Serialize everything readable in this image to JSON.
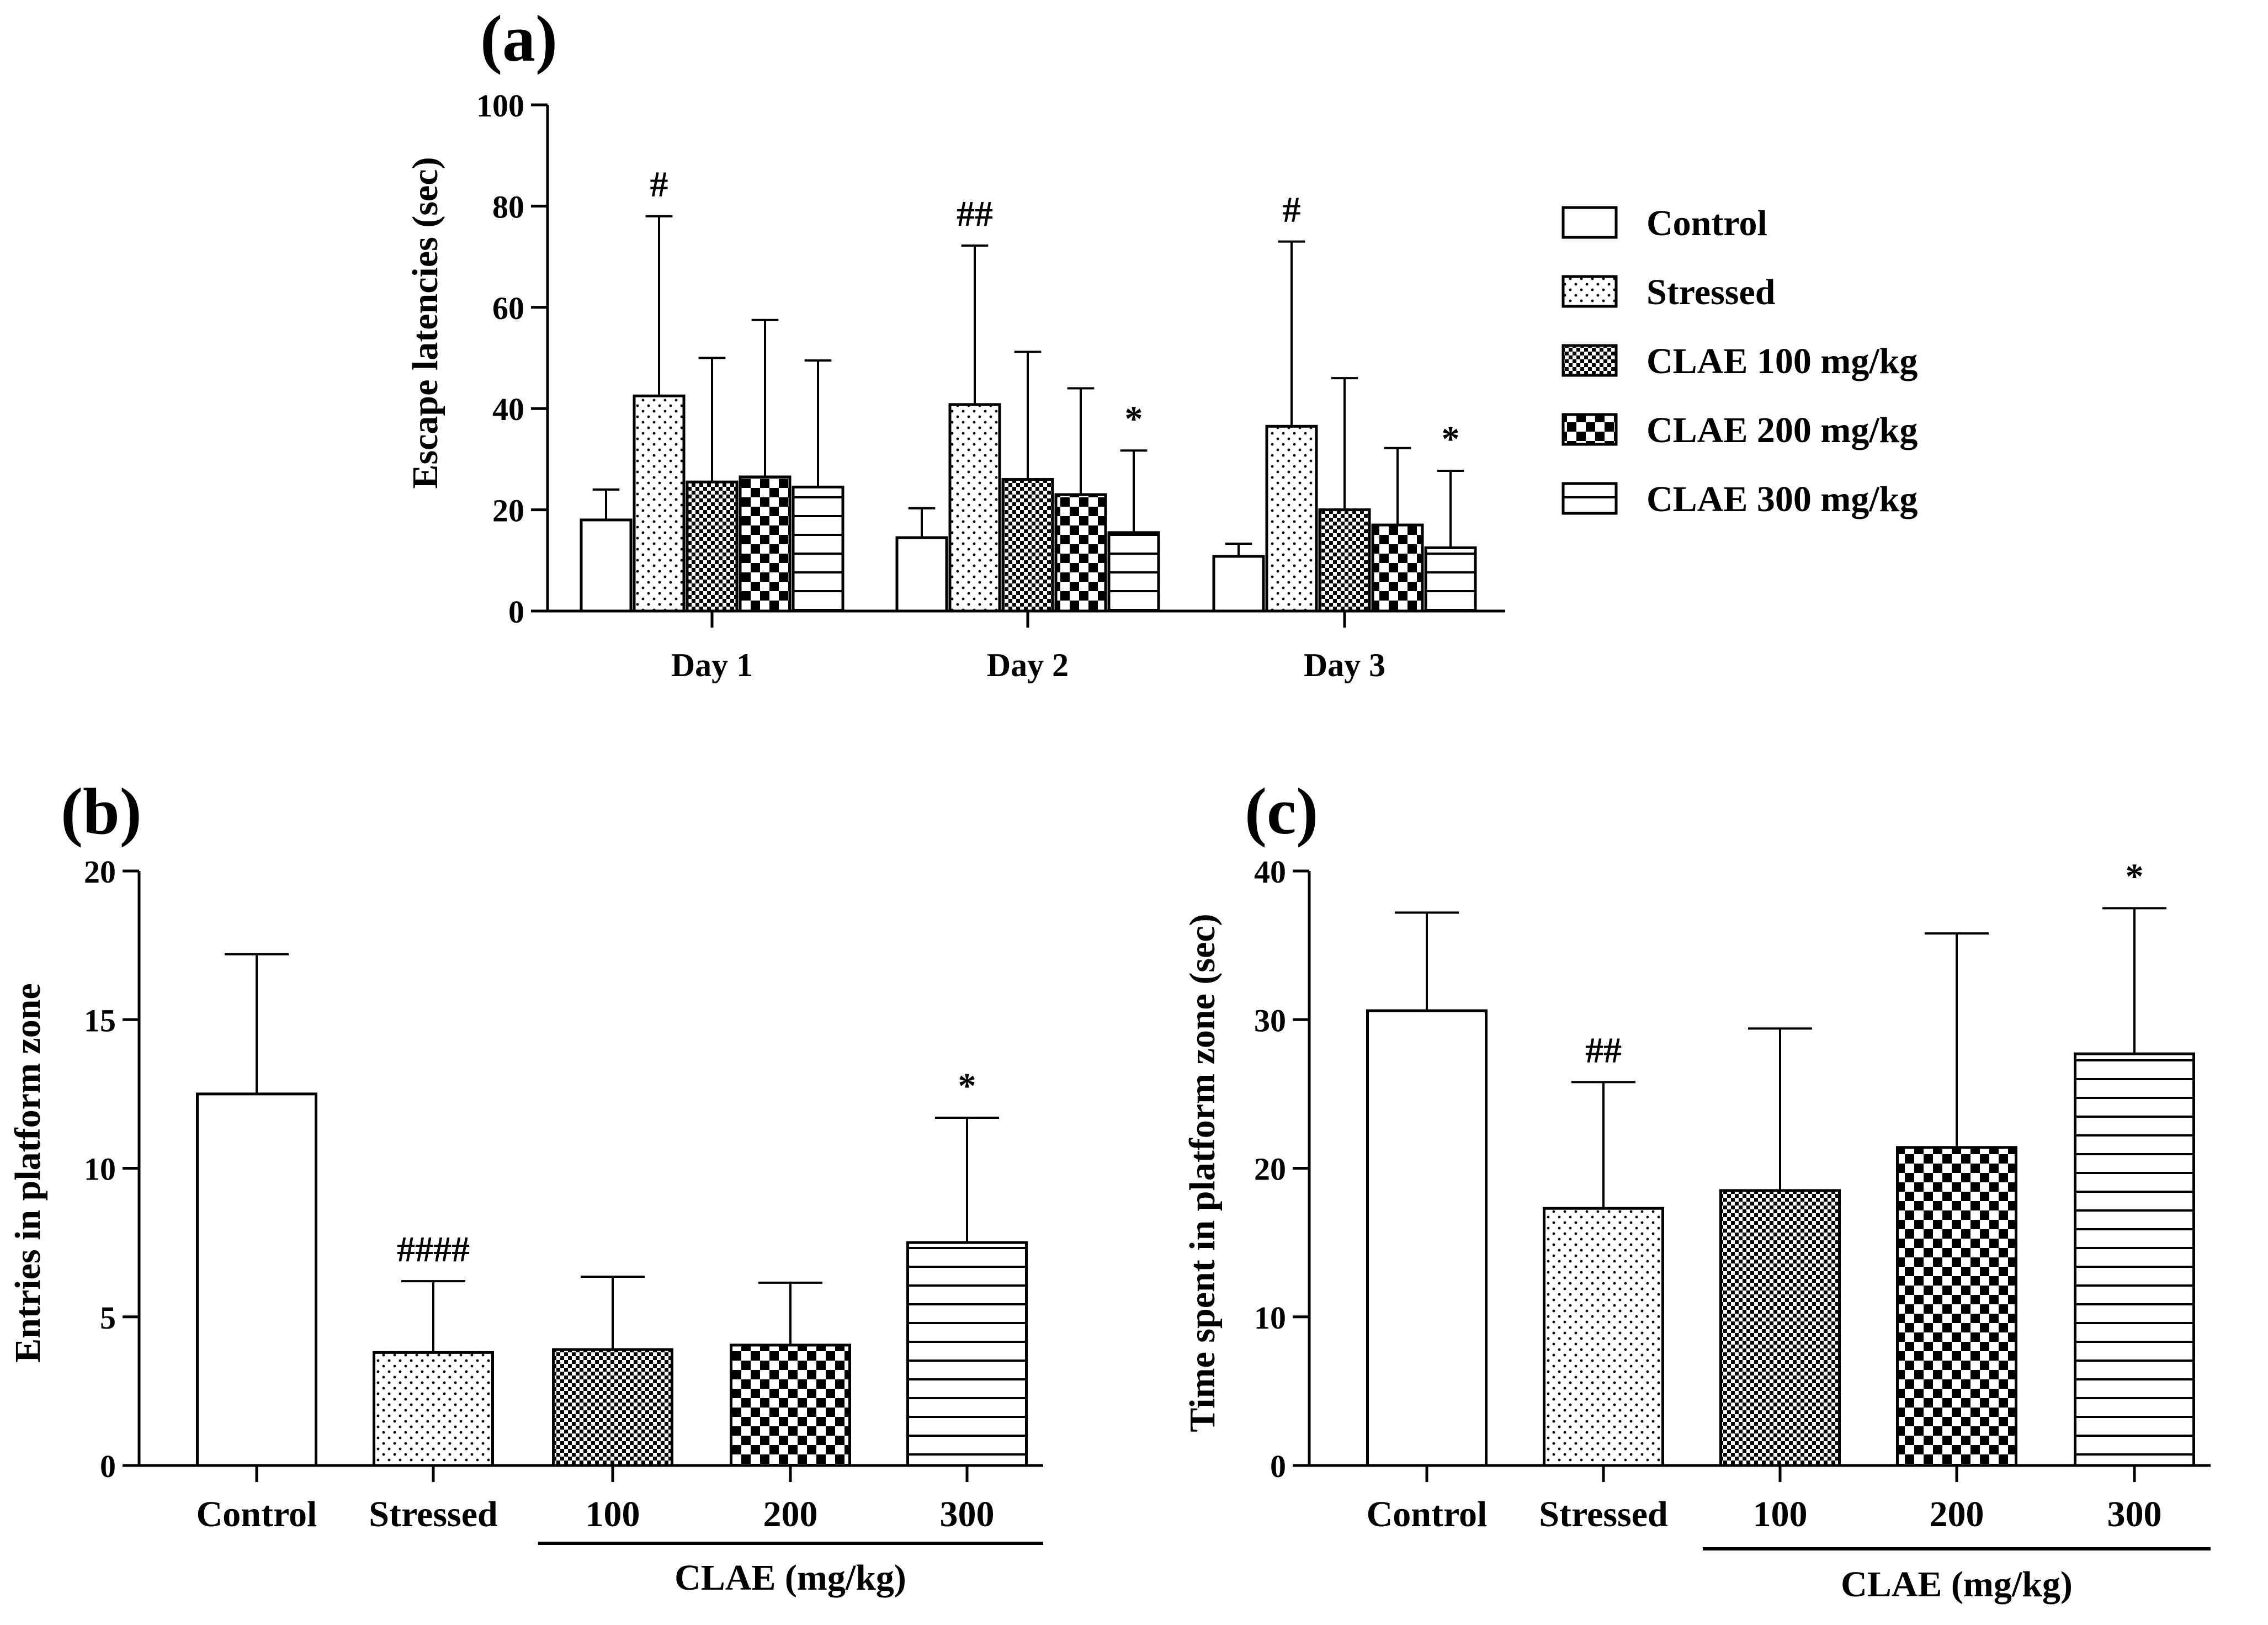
{
  "chart_data": [
    {
      "panel": "(a)",
      "type": "bar",
      "ylabel": "Escape latencies (sec)",
      "ylim": [
        0,
        100
      ],
      "yticks": [
        0,
        20,
        40,
        60,
        80,
        100
      ],
      "categories": [
        "Day 1",
        "Day 2",
        "Day 3"
      ],
      "series": [
        {
          "name": "Control",
          "pattern": "blank",
          "values": [
            18,
            14.5,
            10.8
          ],
          "errors": [
            6,
            5.8,
            2.5
          ],
          "annotations": [
            "",
            "",
            ""
          ]
        },
        {
          "name": "Stressed",
          "pattern": "dots",
          "values": [
            42.5,
            40.8,
            36.5
          ],
          "errors": [
            35.5,
            31.4,
            36.5
          ],
          "annotations": [
            "#",
            "##",
            "#"
          ]
        },
        {
          "name": "CLAE 100 mg/kg",
          "pattern": "finecheck",
          "values": [
            25.5,
            26,
            20
          ],
          "errors": [
            24.5,
            25.2,
            26
          ],
          "annotations": [
            "",
            "",
            ""
          ]
        },
        {
          "name": "CLAE 200 mg/kg",
          "pattern": "check",
          "values": [
            26.5,
            23,
            17
          ],
          "errors": [
            31,
            21,
            15.2
          ],
          "annotations": [
            "",
            "",
            ""
          ]
        },
        {
          "name": "CLAE 300 mg/kg",
          "pattern": "hlines",
          "values": [
            24.5,
            15.5,
            12.5
          ],
          "errors": [
            25,
            16.2,
            15.2
          ],
          "annotations": [
            "",
            "*",
            "*"
          ]
        }
      ]
    },
    {
      "panel": "(b)",
      "type": "bar",
      "ylabel": "Entries in platform zone",
      "ylim": [
        0,
        20
      ],
      "yticks": [
        0,
        5,
        10,
        15,
        20
      ],
      "categories": [
        "Control",
        "Stressed",
        "100",
        "200",
        "300"
      ],
      "patterns": [
        "blank",
        "dots",
        "finecheck",
        "check",
        "hlines"
      ],
      "values": [
        12.5,
        3.8,
        3.9,
        4.05,
        7.5
      ],
      "errors": [
        4.7,
        2.4,
        2.45,
        2.1,
        4.2
      ],
      "annotations": [
        "",
        "####",
        "",
        "",
        "*"
      ],
      "group_label": "CLAE (mg/kg)"
    },
    {
      "panel": "(c)",
      "type": "bar",
      "ylabel": "Time spent in platform zone (sec)",
      "ylim": [
        0,
        40
      ],
      "yticks": [
        0,
        10,
        20,
        30,
        40
      ],
      "categories": [
        "Control",
        "Stressed",
        "100",
        "200",
        "300"
      ],
      "patterns": [
        "blank",
        "dots",
        "finecheck",
        "check",
        "hlines"
      ],
      "values": [
        30.6,
        17.3,
        18.5,
        21.4,
        27.7
      ],
      "errors": [
        6.6,
        8.5,
        10.9,
        14.4,
        9.8
      ],
      "annotations": [
        "",
        "##",
        "",
        "",
        "*"
      ],
      "group_label": "CLAE (mg/kg)"
    }
  ]
}
